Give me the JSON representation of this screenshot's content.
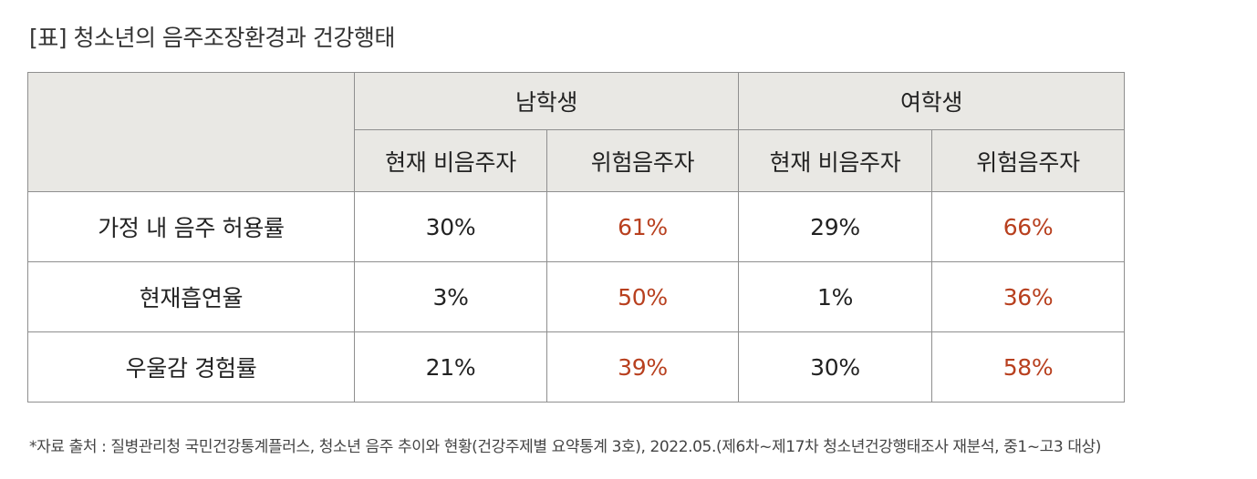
{
  "title": "[표] 청소년의 음주조장환경과 건강행태",
  "table": {
    "group_headers": [
      "남학생",
      "여학생"
    ],
    "sub_headers": [
      "현재 비음주자",
      "위험음주자",
      "현재 비음주자",
      "위험음주자"
    ],
    "rows": [
      {
        "label": "가정 내 음주 허용률",
        "values": [
          "30%",
          "61%",
          "29%",
          "66%"
        ]
      },
      {
        "label": "현재흡연율",
        "values": [
          "3%",
          "50%",
          "1%",
          "36%"
        ]
      },
      {
        "label": "우울감 경험률",
        "values": [
          "21%",
          "39%",
          "30%",
          "58%"
        ]
      }
    ]
  },
  "footnote": "*자료 출처 : 질병관리청 국민건강통계플러스, 청소년 음주 추이와 현황(건강주제별 요약통계 3호), 2022.05.(제6차~제17차 청소년건강행태조사 재분석, 중1~고3 대상)",
  "colors": {
    "header_bg": "#e9e8e4",
    "accent": "#b8401f",
    "border": "#8f8f8f"
  }
}
